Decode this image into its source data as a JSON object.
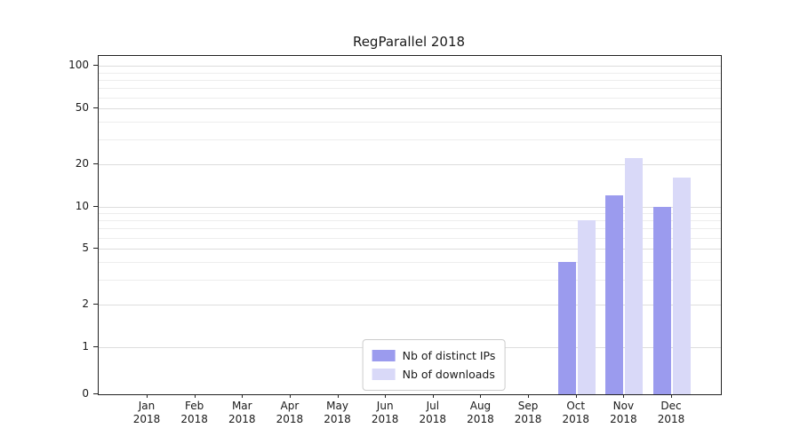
{
  "title": "RegParallel 2018",
  "colors": {
    "distinct_ips": "#9b9bee",
    "downloads": "#d9d9f8",
    "grid_minor": "#ededed",
    "grid_major": "#dddddd",
    "axis": "#222222",
    "legend_border": "#cccccc",
    "background": "#ffffff"
  },
  "legend": {
    "items": [
      {
        "label": "Nb of distinct IPs",
        "color_key": "distinct_ips"
      },
      {
        "label": "Nb of downloads",
        "color_key": "downloads"
      }
    ]
  },
  "y_axis": {
    "ticks": [
      0,
      1,
      2,
      5,
      10,
      20,
      50,
      100
    ],
    "minor_ticks": [
      2,
      3,
      4,
      5,
      6,
      7,
      8,
      9,
      20,
      30,
      40,
      50,
      60,
      70,
      80,
      90
    ]
  },
  "chart_data": {
    "type": "bar",
    "title": "RegParallel 2018",
    "categories": [
      "Jan 2018",
      "Feb 2018",
      "Mar 2018",
      "Apr 2018",
      "May 2018",
      "Jun 2018",
      "Jul 2018",
      "Aug 2018",
      "Sep 2018",
      "Oct 2018",
      "Nov 2018",
      "Dec 2018"
    ],
    "category_lines": [
      [
        "Jan",
        "2018"
      ],
      [
        "Feb",
        "2018"
      ],
      [
        "Mar",
        "2018"
      ],
      [
        "Apr",
        "2018"
      ],
      [
        "May",
        "2018"
      ],
      [
        "Jun",
        "2018"
      ],
      [
        "Jul",
        "2018"
      ],
      [
        "Aug",
        "2018"
      ],
      [
        "Sep",
        "2018"
      ],
      [
        "Oct",
        "2018"
      ],
      [
        "Nov",
        "2018"
      ],
      [
        "Dec",
        "2018"
      ]
    ],
    "series": [
      {
        "name": "Nb of distinct IPs",
        "color_key": "distinct_ips",
        "values": [
          0,
          0,
          0,
          0,
          0,
          0,
          0,
          0,
          0,
          4,
          12,
          10
        ]
      },
      {
        "name": "Nb of downloads",
        "color_key": "downloads",
        "values": [
          0,
          0,
          0,
          0,
          0,
          0,
          0,
          0,
          0,
          8,
          22,
          16
        ]
      }
    ],
    "xlabel": "",
    "ylabel": "",
    "yscale": "symlog",
    "ylim": [
      0,
      110
    ],
    "grid": "horizontal",
    "legend_position": "lower center"
  }
}
